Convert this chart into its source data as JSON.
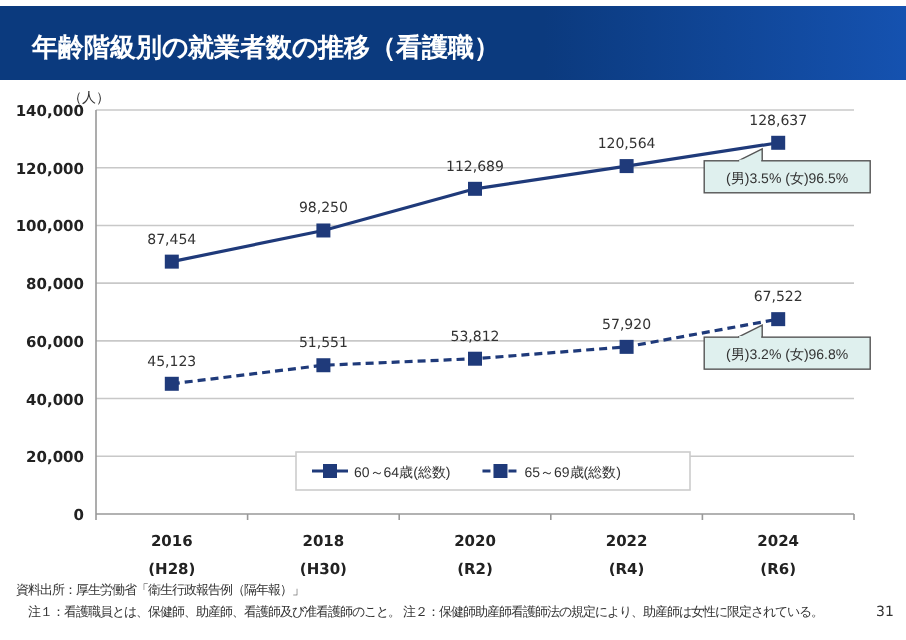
{
  "chart_data": {
    "type": "line",
    "title": "年齢階級別の就業者数の推移（看護職）",
    "ylabel": "（人）",
    "categories": [
      "2016\n(H28)",
      "2018\n(H30)",
      "2020\n(R2)",
      "2022\n(R4)",
      "2024\n(R6)"
    ],
    "series": [
      {
        "name": "60～64歳(総数)",
        "color": "#1f3a7a",
        "line_style": "solid",
        "values": [
          87454,
          98250,
          112689,
          120564,
          128637
        ],
        "value_labels": [
          "87,454",
          "98,250",
          "112,689",
          "120,564",
          "128,637"
        ]
      },
      {
        "name": "65～69歳(総数)",
        "color": "#1f3a7a",
        "line_style": "dashed",
        "values": [
          45123,
          51551,
          53812,
          57920,
          67522
        ],
        "value_labels": [
          "45,123",
          "51,551",
          "53,812",
          "57,920",
          "67,522"
        ]
      }
    ],
    "ylim": [
      0,
      140000
    ],
    "yticks": [
      0,
      {
        "value": 20000,
        "label": "20,000"
      },
      {
        "value": 40000,
        "label": "40,000"
      },
      {
        "value": 60000,
        "label": "60,000"
      },
      {
        "value": 80000,
        "label": "80,000"
      },
      {
        "value": 100000,
        "label": "100,000"
      },
      {
        "value": 120000,
        "label": "120,000"
      },
      {
        "value": 140000,
        "label": "140,000"
      }
    ],
    "grid": "y",
    "legend": "bottom",
    "marker": "square",
    "annotations": [
      {
        "text": "(男)3.5%  (女)96.5%",
        "x": "2024\n(R6)",
        "y": 128637
      },
      {
        "text": "(男)3.2%  (女)96.8%",
        "x": "2024\n(R6)",
        "y": 67522
      },
      "資料出所：厚生労働省「衛生行政報告例（隔年報）」",
      "注１：看護職員とは、保健師、助産師、看護師及び准看護師のこと。 注２：保健師助産師看護師法の規定により、助産師は女性に限定されている。",
      "31"
    ]
  }
}
